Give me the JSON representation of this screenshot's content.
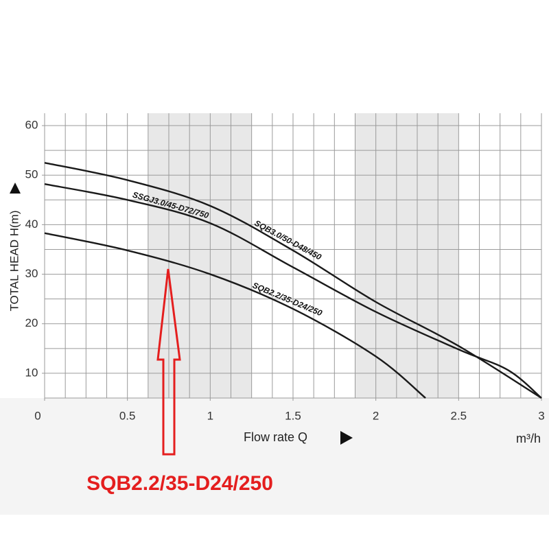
{
  "chart_data": {
    "type": "line",
    "y_axis_label": "TOTAL HEAD H(m)",
    "x_axis_label": "Flow rate Q",
    "x_unit": "m³/h",
    "annotation": "SQB2.2/35-D24/250",
    "xlim": [
      0,
      3
    ],
    "ylim": [
      5,
      62.5
    ],
    "xticks": [
      0,
      0.5,
      1,
      1.5,
      2,
      2.5,
      3
    ],
    "yticks": [
      10,
      20,
      30,
      40,
      50,
      60
    ],
    "grid": true,
    "grid_x_step": 0.125,
    "grid_y_step": 5,
    "shaded_x_ranges": [
      [
        0.625,
        1.25
      ],
      [
        1.875,
        2.5
      ]
    ],
    "series": [
      {
        "name": "SQB3.0/50-D48/450",
        "color": "#1a1a1a",
        "x": [
          0,
          0.5,
          1,
          1.5,
          2,
          2.5,
          3
        ],
        "values": [
          52.5,
          49,
          43.8,
          34.8,
          24.4,
          15.5,
          5
        ]
      },
      {
        "name": "SSGJ3.0/45-D72/750",
        "color": "#1a1a1a",
        "x": [
          0,
          0.5,
          1,
          1.5,
          2,
          2.5,
          2.8,
          3
        ],
        "values": [
          48.2,
          45,
          40.3,
          31.4,
          22.4,
          14.8,
          10.6,
          5
        ]
      },
      {
        "name": "SQB2.2/35-D24/250",
        "color": "#1a1a1a",
        "x": [
          0,
          0.5,
          1,
          1.5,
          2,
          2.3
        ],
        "values": [
          38.3,
          34.8,
          30,
          23,
          13.4,
          5
        ]
      }
    ]
  }
}
